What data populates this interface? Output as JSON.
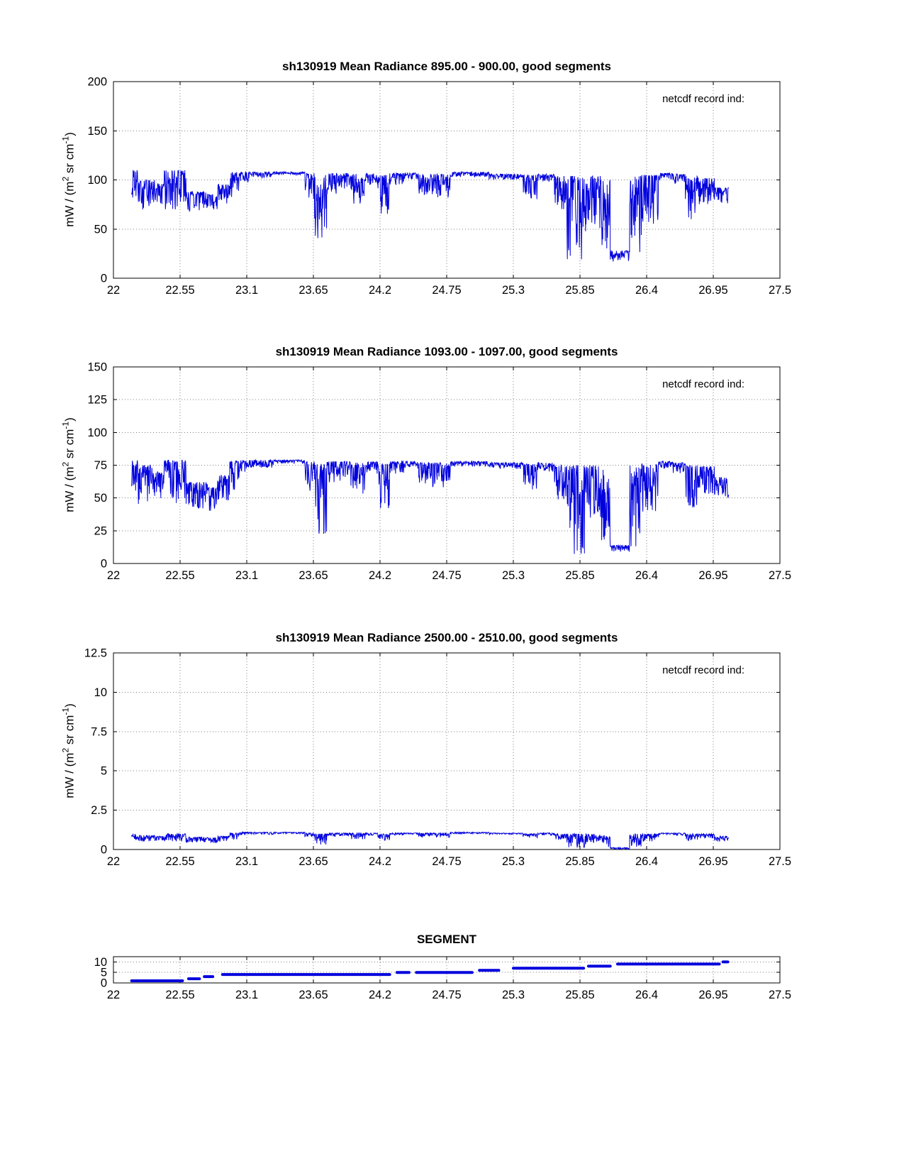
{
  "labels": {
    "ylabel_pre": "mW / (m",
    "ylabel_sup1": "2",
    "ylabel_mid": " sr cm",
    "ylabel_sup2": "-1",
    "ylabel_post": ")"
  },
  "colors": {
    "line": "#0000dd",
    "axis": "#000000",
    "grid": "#808080"
  },
  "chart_data": [
    {
      "type": "line",
      "title": "sh130919 Mean Radiance 895.00 - 900.00, good segments",
      "xlabel": "",
      "ylabel": "mW / (m2 sr cm-1)",
      "annotation": "netcdf record ind:",
      "xlim": [
        22,
        27.5
      ],
      "ylim": [
        0,
        200
      ],
      "xticks": [
        22,
        22.55,
        23.1,
        23.65,
        24.2,
        24.75,
        25.3,
        25.85,
        26.4,
        26.95,
        27.5
      ],
      "yticks": [
        0,
        50,
        100,
        150,
        200
      ],
      "grid": true,
      "legend": "none",
      "band_segments": [
        [
          22.15,
          22.2,
          75,
          110
        ],
        [
          22.2,
          22.34,
          68,
          100
        ],
        [
          22.34,
          22.42,
          72,
          96
        ],
        [
          22.42,
          22.52,
          70,
          110
        ],
        [
          22.52,
          22.6,
          72,
          110
        ],
        [
          22.6,
          22.78,
          68,
          88
        ],
        [
          22.78,
          22.86,
          65,
          85
        ],
        [
          22.86,
          22.96,
          70,
          96
        ],
        [
          22.96,
          23.04,
          80,
          108
        ],
        [
          23.04,
          23.12,
          98,
          108
        ],
        [
          23.12,
          23.32,
          102,
          108
        ],
        [
          23.32,
          23.58,
          105,
          108
        ],
        [
          23.58,
          23.66,
          80,
          107
        ],
        [
          23.66,
          23.76,
          40,
          105
        ],
        [
          23.76,
          23.84,
          85,
          107
        ],
        [
          23.84,
          23.96,
          90,
          107
        ],
        [
          23.96,
          24.08,
          75,
          106
        ],
        [
          24.08,
          24.18,
          95,
          107
        ],
        [
          24.18,
          24.28,
          62,
          105
        ],
        [
          24.28,
          24.4,
          95,
          107
        ],
        [
          24.4,
          24.52,
          100,
          107
        ],
        [
          24.52,
          24.62,
          85,
          106
        ],
        [
          24.62,
          24.78,
          82,
          106
        ],
        [
          24.78,
          25.1,
          103,
          108
        ],
        [
          25.1,
          25.38,
          100,
          106
        ],
        [
          25.38,
          25.5,
          80,
          105
        ],
        [
          25.5,
          25.64,
          98,
          106
        ],
        [
          25.64,
          25.74,
          70,
          104
        ],
        [
          25.74,
          25.9,
          15,
          104
        ],
        [
          25.9,
          26.02,
          50,
          104
        ],
        [
          26.02,
          26.1,
          25,
          100
        ],
        [
          26.1,
          26.26,
          17,
          28
        ],
        [
          26.26,
          26.36,
          20,
          104
        ],
        [
          26.36,
          26.5,
          55,
          105
        ],
        [
          26.5,
          26.62,
          100,
          107
        ],
        [
          26.62,
          26.72,
          95,
          106
        ],
        [
          26.72,
          26.82,
          60,
          104
        ],
        [
          26.82,
          26.96,
          75,
          102
        ],
        [
          26.96,
          27.08,
          76,
          92
        ]
      ]
    },
    {
      "type": "line",
      "title": "sh130919 Mean Radiance 1093.00 - 1097.00, good segments",
      "xlabel": "",
      "ylabel": "mW / (m2 sr cm-1)",
      "annotation": "netcdf record ind:",
      "xlim": [
        22,
        27.5
      ],
      "ylim": [
        0,
        150
      ],
      "xticks": [
        22,
        22.55,
        23.1,
        23.65,
        24.2,
        24.75,
        25.3,
        25.85,
        26.4,
        26.95,
        27.5
      ],
      "yticks": [
        0,
        25,
        50,
        75,
        100,
        125,
        150
      ],
      "grid": true,
      "legend": "none",
      "band_segments": [
        [
          22.15,
          22.2,
          55,
          79
        ],
        [
          22.2,
          22.34,
          45,
          75
        ],
        [
          22.34,
          22.42,
          48,
          70
        ],
        [
          22.42,
          22.52,
          46,
          79
        ],
        [
          22.52,
          22.6,
          48,
          79
        ],
        [
          22.6,
          22.78,
          42,
          62
        ],
        [
          22.78,
          22.86,
          40,
          58
        ],
        [
          22.86,
          22.96,
          45,
          68
        ],
        [
          22.96,
          23.04,
          55,
          78
        ],
        [
          23.04,
          23.12,
          70,
          79
        ],
        [
          23.12,
          23.32,
          73,
          79
        ],
        [
          23.32,
          23.58,
          76,
          79
        ],
        [
          23.58,
          23.66,
          55,
          78
        ],
        [
          23.66,
          23.76,
          22,
          76
        ],
        [
          23.76,
          23.84,
          60,
          78
        ],
        [
          23.84,
          23.96,
          63,
          78
        ],
        [
          23.96,
          24.08,
          50,
          77
        ],
        [
          24.08,
          24.18,
          68,
          78
        ],
        [
          24.18,
          24.28,
          42,
          76
        ],
        [
          24.28,
          24.4,
          68,
          78
        ],
        [
          24.4,
          24.52,
          72,
          78
        ],
        [
          24.52,
          24.62,
          60,
          77
        ],
        [
          24.62,
          24.78,
          58,
          77
        ],
        [
          24.78,
          25.1,
          74,
          78
        ],
        [
          25.1,
          25.38,
          72,
          77
        ],
        [
          25.38,
          25.5,
          56,
          76
        ],
        [
          25.5,
          25.64,
          70,
          77
        ],
        [
          25.64,
          25.74,
          48,
          75
        ],
        [
          25.74,
          25.9,
          7,
          75
        ],
        [
          25.9,
          26.02,
          35,
          75
        ],
        [
          26.02,
          26.1,
          15,
          72
        ],
        [
          26.1,
          26.26,
          9,
          14
        ],
        [
          26.26,
          26.36,
          12,
          75
        ],
        [
          26.36,
          26.5,
          38,
          76
        ],
        [
          26.5,
          26.62,
          72,
          78
        ],
        [
          26.62,
          26.72,
          68,
          77
        ],
        [
          26.72,
          26.82,
          42,
          75
        ],
        [
          26.82,
          26.96,
          52,
          74
        ],
        [
          26.96,
          27.08,
          50,
          66
        ]
      ]
    },
    {
      "type": "line",
      "title": "sh130919 Mean Radiance 2500.00 - 2510.00, good segments",
      "xlabel": "",
      "ylabel": "mW / (m2 sr cm-1)",
      "annotation": "netcdf record ind:",
      "xlim": [
        22,
        27.5
      ],
      "ylim": [
        0,
        12.5
      ],
      "xticks": [
        22,
        22.55,
        23.1,
        23.65,
        24.2,
        24.75,
        25.3,
        25.85,
        26.4,
        26.95,
        27.5
      ],
      "yticks": [
        0,
        2.5,
        5,
        7.5,
        10,
        12.5
      ],
      "grid": true,
      "legend": "none",
      "band_segments": [
        [
          22.15,
          22.2,
          0.6,
          1.0
        ],
        [
          22.2,
          22.34,
          0.5,
          0.9
        ],
        [
          22.34,
          22.42,
          0.55,
          0.85
        ],
        [
          22.42,
          22.52,
          0.5,
          1.0
        ],
        [
          22.52,
          22.6,
          0.55,
          1.0
        ],
        [
          22.6,
          22.78,
          0.45,
          0.8
        ],
        [
          22.78,
          22.86,
          0.4,
          0.75
        ],
        [
          22.86,
          22.96,
          0.5,
          0.85
        ],
        [
          22.96,
          23.04,
          0.6,
          1.05
        ],
        [
          23.04,
          23.12,
          0.9,
          1.1
        ],
        [
          23.12,
          23.32,
          0.95,
          1.1
        ],
        [
          23.32,
          23.58,
          1.0,
          1.1
        ],
        [
          23.58,
          23.66,
          0.7,
          1.05
        ],
        [
          23.66,
          23.76,
          0.3,
          1.0
        ],
        [
          23.76,
          23.84,
          0.8,
          1.05
        ],
        [
          23.84,
          23.96,
          0.85,
          1.05
        ],
        [
          23.96,
          24.08,
          0.65,
          1.05
        ],
        [
          24.08,
          24.18,
          0.9,
          1.05
        ],
        [
          24.18,
          24.28,
          0.55,
          1.0
        ],
        [
          24.28,
          24.4,
          0.9,
          1.05
        ],
        [
          24.4,
          24.52,
          0.95,
          1.05
        ],
        [
          24.52,
          24.62,
          0.8,
          1.05
        ],
        [
          24.62,
          24.78,
          0.75,
          1.05
        ],
        [
          24.78,
          25.1,
          1.0,
          1.1
        ],
        [
          25.1,
          25.38,
          0.95,
          1.05
        ],
        [
          25.38,
          25.5,
          0.75,
          1.0
        ],
        [
          25.5,
          25.64,
          0.9,
          1.05
        ],
        [
          25.64,
          25.74,
          0.6,
          1.0
        ],
        [
          25.74,
          25.9,
          0.1,
          1.0
        ],
        [
          25.9,
          26.02,
          0.45,
          1.0
        ],
        [
          26.02,
          26.1,
          0.15,
          0.9
        ],
        [
          26.1,
          26.26,
          0.0,
          0.12
        ],
        [
          26.26,
          26.36,
          0.1,
          1.0
        ],
        [
          26.36,
          26.5,
          0.5,
          1.0
        ],
        [
          26.5,
          26.62,
          0.95,
          1.05
        ],
        [
          26.62,
          26.72,
          0.9,
          1.05
        ],
        [
          26.72,
          26.82,
          0.55,
          1.0
        ],
        [
          26.82,
          26.96,
          0.7,
          1.0
        ],
        [
          26.96,
          27.08,
          0.5,
          0.85
        ]
      ]
    },
    {
      "type": "step",
      "title": "SEGMENT",
      "xlabel": "",
      "ylabel": "",
      "annotation": "",
      "xlim": [
        22,
        27.5
      ],
      "ylim": [
        0,
        12.5
      ],
      "xticks": [
        22,
        22.55,
        23.1,
        23.65,
        24.2,
        24.75,
        25.3,
        25.85,
        26.4,
        26.95,
        27.5
      ],
      "yticks": [
        0,
        5,
        10
      ],
      "grid": true,
      "legend": "none",
      "segments": [
        [
          22.15,
          22.57,
          1
        ],
        [
          22.62,
          22.71,
          2
        ],
        [
          22.75,
          22.82,
          3
        ],
        [
          22.9,
          24.28,
          4
        ],
        [
          24.34,
          24.44,
          5
        ],
        [
          24.5,
          24.96,
          5
        ],
        [
          25.02,
          25.18,
          6
        ],
        [
          25.3,
          25.88,
          7
        ],
        [
          25.92,
          26.1,
          8
        ],
        [
          26.16,
          27.0,
          9
        ],
        [
          27.03,
          27.07,
          10
        ]
      ]
    }
  ]
}
